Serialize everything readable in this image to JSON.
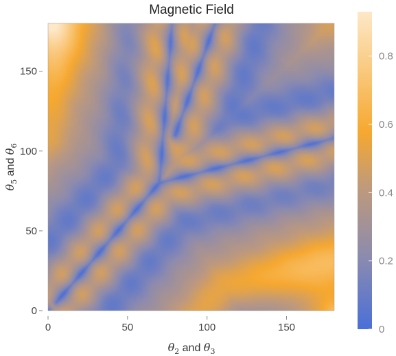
{
  "chart_data": {
    "type": "heatmap",
    "title": "Magnetic Field",
    "xlabel": {
      "sym": "θ",
      "sub1": "2",
      "mid": " and ",
      "sub2": "3"
    },
    "ylabel": {
      "sym": "θ",
      "sub1": "5",
      "mid": " and ",
      "sub2": "6"
    },
    "xlim": [
      0,
      180
    ],
    "ylim": [
      0,
      180
    ],
    "x_ticks": [
      0,
      50,
      100,
      150
    ],
    "y_ticks": [
      0,
      50,
      100,
      150
    ],
    "colorbar": {
      "range": [
        0,
        0.93
      ],
      "ticks": [
        0,
        0.2,
        0.4,
        0.6,
        0.8
      ],
      "colors": [
        "#4a6fd8",
        "#8a8ab0",
        "#c09a7a",
        "#f6a830",
        "#fde8c8"
      ]
    },
    "field_description_points": [
      {
        "x": 0,
        "y": 180,
        "value": 0.93
      },
      {
        "x": 180,
        "y": 0,
        "value": 0.93
      },
      {
        "x": 180,
        "y": 180,
        "value": 0.3
      },
      {
        "x": 0,
        "y": 0,
        "value": 0.05
      },
      {
        "x": 90,
        "y": 90,
        "value": 0.05
      }
    ]
  }
}
